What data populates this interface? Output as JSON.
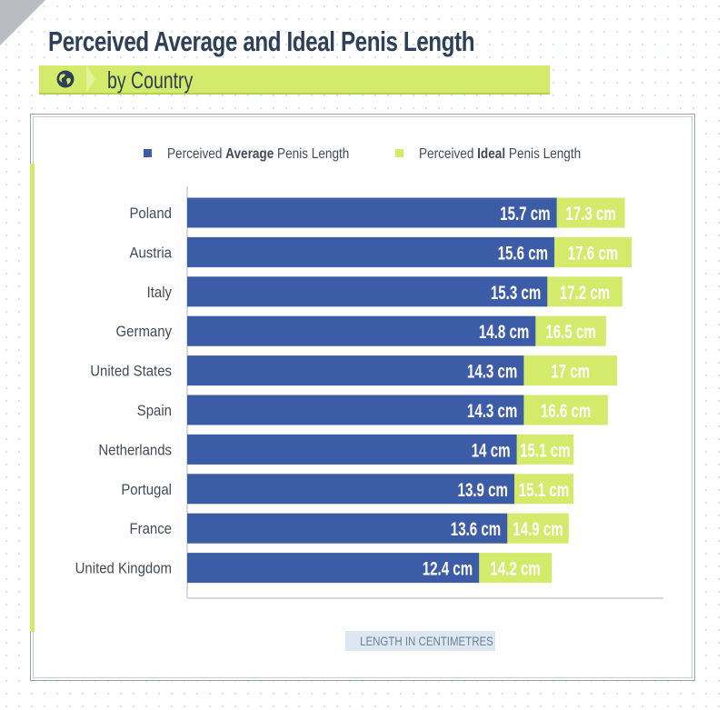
{
  "header": {
    "title": "Perceived Average and Ideal Penis Length",
    "subtitle": "by Country",
    "icon": "globe-icon"
  },
  "colors": {
    "average": "#3d5ca8",
    "ideal": "#d4ea6a",
    "title": "#2e4057",
    "label": "#444b55"
  },
  "chart_data": {
    "type": "bar",
    "orientation": "horizontal",
    "title": "Perceived Average and Ideal Penis Length",
    "subtitle": "by Country",
    "xlabel": "LENGTH IN CENTIMETRES",
    "legend_position": "top",
    "grid": false,
    "categories": [
      "Poland",
      "Austria",
      "Italy",
      "Germany",
      "United States",
      "Spain",
      "Netherlands",
      "Portugal",
      "France",
      "United Kingdom"
    ],
    "series": [
      {
        "name": "Perceived Average Penis Length",
        "legend_prefix": "Perceived ",
        "legend_bold": "Average",
        "legend_suffix": " Penis Length",
        "values": [
          15.7,
          15.6,
          15.3,
          14.8,
          14.3,
          14.3,
          14,
          13.9,
          13.6,
          12.4
        ],
        "labels": [
          "15.7 cm",
          "15.6 cm",
          "15.3 cm",
          "14.8 cm",
          "14.3 cm",
          "14.3 cm",
          "14 cm",
          "13.9 cm",
          "13.6 cm",
          "12.4 cm"
        ]
      },
      {
        "name": "Perceived Ideal Penis Length",
        "legend_prefix": "Perceived ",
        "legend_bold": "Ideal",
        "legend_suffix": " Penis Length",
        "values": [
          17.3,
          17.6,
          17.2,
          16.5,
          17,
          16.6,
          15.1,
          15.1,
          14.9,
          14.2
        ],
        "labels": [
          "17.3 cm",
          "17.6 cm",
          "17.2 cm",
          "16.5 cm",
          "17 cm",
          "16.6 cm",
          "15.1 cm",
          "15.1 cm",
          "14.9 cm",
          "14.2 cm"
        ]
      }
    ]
  }
}
